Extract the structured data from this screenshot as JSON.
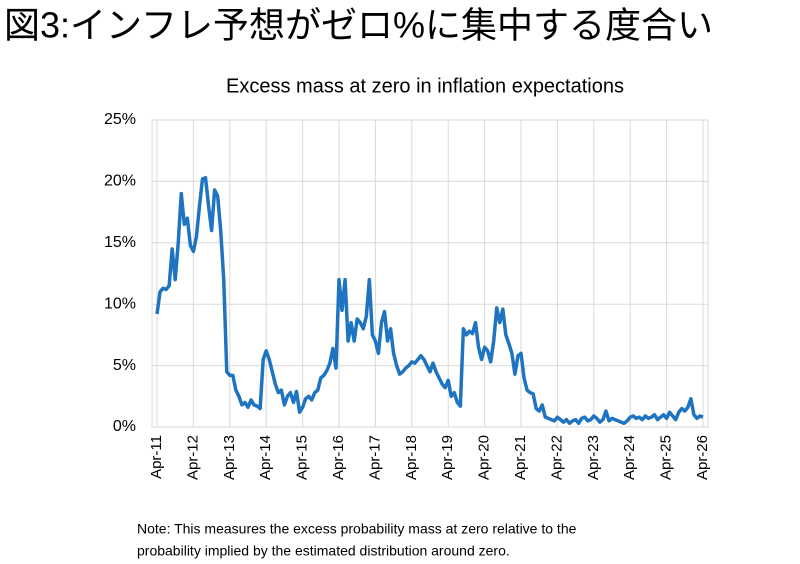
{
  "header": {
    "title": "図3:インフレ予想がゼロ%に集中する度合い"
  },
  "chart_data": {
    "type": "line",
    "title": "Excess mass at zero in inflation expectations",
    "categories": [
      "Apr-11",
      null,
      null,
      null,
      null,
      null,
      null,
      null,
      null,
      null,
      null,
      null,
      "Apr-12",
      null,
      null,
      null,
      null,
      null,
      null,
      null,
      null,
      null,
      null,
      null,
      "Apr-13",
      null,
      null,
      null,
      null,
      null,
      null,
      null,
      null,
      null,
      null,
      null,
      "Apr-14",
      null,
      null,
      null,
      null,
      null,
      null,
      null,
      null,
      null,
      null,
      null,
      "Apr-15",
      null,
      null,
      null,
      null,
      null,
      null,
      null,
      null,
      null,
      null,
      null,
      "Apr-16",
      null,
      null,
      null,
      null,
      null,
      null,
      null,
      null,
      null,
      null,
      null,
      "Apr-17",
      null,
      null,
      null,
      null,
      null,
      null,
      null,
      null,
      null,
      null,
      null,
      "Apr-18",
      null,
      null,
      null,
      null,
      null,
      null,
      null,
      null,
      null,
      null,
      null,
      "Apr-19",
      null,
      null,
      null,
      null,
      null,
      null,
      null,
      null,
      null,
      null,
      null,
      "Apr-20",
      null,
      null,
      null,
      null,
      null,
      null,
      null,
      null,
      null,
      null,
      null,
      "Apr-21",
      null,
      null,
      null,
      null,
      null,
      null,
      null,
      null,
      null,
      null,
      null,
      "Apr-22",
      null,
      null,
      null,
      null,
      null,
      null,
      null,
      null,
      null,
      null,
      null,
      "Apr-23",
      null,
      null,
      null,
      null,
      null,
      null,
      null,
      null,
      null,
      null,
      null,
      "Apr-24",
      null,
      null,
      null,
      null,
      null,
      null,
      null,
      null,
      null,
      null,
      null,
      "Apr-25",
      null,
      null,
      null,
      null,
      null,
      null,
      null,
      null,
      null,
      null,
      null,
      "Apr-26"
    ],
    "values": [
      9.2,
      11,
      11.3,
      11.2,
      11.5,
      14.5,
      12,
      15,
      19,
      16.5,
      17,
      14.8,
      14.3,
      15.5,
      18,
      20.2,
      20.3,
      18,
      16,
      19.3,
      18.8,
      16,
      12,
      4.5,
      4.2,
      4.2,
      3,
      2.5,
      1.8,
      2,
      1.6,
      2.2,
      1.8,
      1.7,
      1.5,
      5.5,
      6.2,
      5.5,
      4.5,
      3.5,
      2.8,
      3,
      1.8,
      2.5,
      2.8,
      2,
      2.9,
      1.2,
      1.6,
      2.3,
      2.5,
      2.2,
      2.8,
      3,
      4,
      4.2,
      4.6,
      5.2,
      6.4,
      4.8,
      12,
      9.5,
      12,
      7,
      8.5,
      7,
      8.8,
      8.5,
      8,
      9,
      12,
      7.5,
      7,
      6,
      8.5,
      9.4,
      7,
      8,
      6,
      5,
      4.3,
      4.5,
      4.8,
      5,
      5.3,
      5.2,
      5.5,
      5.8,
      5.5,
      5,
      4.5,
      5.2,
      4.5,
      4,
      3.5,
      3.2,
      3.8,
      2.5,
      2.8,
      2,
      1.7,
      8,
      7.5,
      7.8,
      7.6,
      8.5,
      6.5,
      5.5,
      6.5,
      6.2,
      5.3,
      7,
      9.7,
      8.5,
      9.6,
      7.5,
      6.8,
      6,
      4.3,
      5.8,
      6,
      4,
      3,
      2.8,
      2.7,
      1.5,
      1.3,
      1.8,
      0.8,
      0.7,
      0.6,
      0.5,
      0.8,
      0.6,
      0.4,
      0.6,
      0.3,
      0.5,
      0.6,
      0.3,
      0.7,
      0.8,
      0.5,
      0.6,
      0.9,
      0.7,
      0.4,
      0.6,
      1.3,
      0.5,
      0.7,
      0.6,
      0.5,
      0.4,
      0.3,
      0.5,
      0.8,
      0.9,
      0.7,
      0.8,
      0.6,
      0.9,
      0.7,
      0.8,
      1,
      0.6,
      0.8,
      1,
      0.7,
      1.2,
      0.9,
      0.6,
      1.2,
      1.5,
      1.3,
      1.6,
      2.3,
      1,
      0.7,
      0.9,
      0.8
    ],
    "color": "#1f74c1",
    "ylim": [
      0,
      25
    ],
    "yticks": [
      {
        "value": 0,
        "label": "0%"
      },
      {
        "value": 5,
        "label": "5%"
      },
      {
        "value": 10,
        "label": "10%"
      },
      {
        "value": 15,
        "label": "15%"
      },
      {
        "value": 20,
        "label": "20%"
      },
      {
        "value": 25,
        "label": "25%"
      }
    ],
    "grid": true,
    "note": [
      "Note: This measures the excess probability mass at zero relative to the",
      "probability implied by the estimated distribution around zero."
    ]
  }
}
